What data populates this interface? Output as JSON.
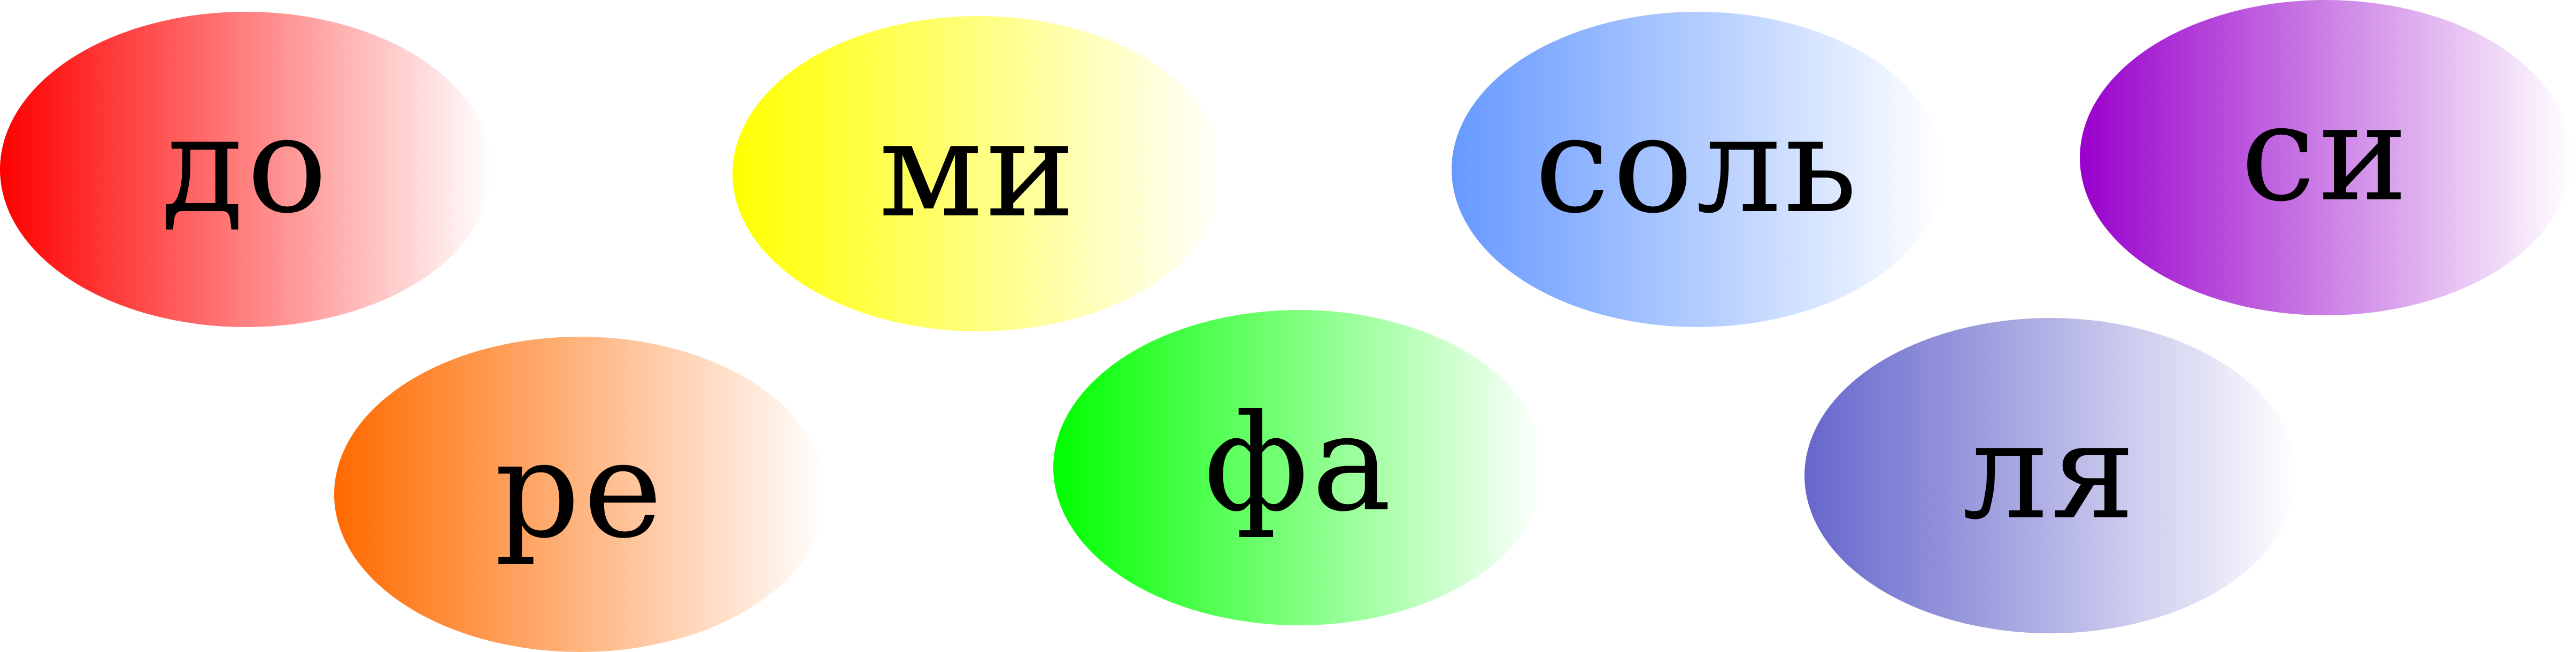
{
  "notes": [
    {
      "id": "n1",
      "label": "до",
      "color": "#ff0000"
    },
    {
      "id": "n2",
      "label": "ре",
      "color": "#ff6a00"
    },
    {
      "id": "n3",
      "label": "ми",
      "color": "#ffff00"
    },
    {
      "id": "n4",
      "label": "фа",
      "color": "#00ff00"
    },
    {
      "id": "n5",
      "label": "соль",
      "color": "#6699ff"
    },
    {
      "id": "n6",
      "label": "ля",
      "color": "#6666cc"
    },
    {
      "id": "n7",
      "label": "си",
      "color": "#9900cc"
    }
  ]
}
